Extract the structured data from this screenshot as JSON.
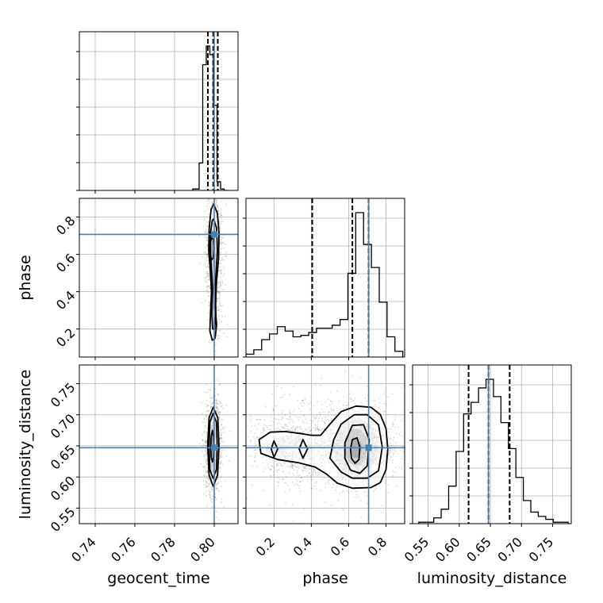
{
  "chart_data": {
    "type": "corner",
    "colors": {
      "truth": "#4682b4",
      "line": "#000000",
      "grid": "#b0b0b0"
    },
    "parameters": [
      {
        "name": "geocent_time",
        "range": [
          0.732,
          0.812
        ],
        "ticks": [
          0.74,
          0.76,
          0.78,
          0.8
        ],
        "tick_labels": [
          "0.74",
          "0.76",
          "0.78",
          "0.80"
        ],
        "truth": 0.8
      },
      {
        "name": "phase",
        "range": [
          0.05,
          0.9
        ],
        "ticks": [
          0.2,
          0.4,
          0.6,
          0.8
        ],
        "tick_labels": [
          "0.2",
          "0.4",
          "0.6",
          "0.8"
        ],
        "truth": 0.707
      },
      {
        "name": "luminosity_distance",
        "range": [
          0.525,
          0.78
        ],
        "ticks": [
          0.55,
          0.6,
          0.65,
          0.7,
          0.75
        ],
        "tick_labels": [
          "0.55",
          "0.60",
          "0.65",
          "0.70",
          "0.75"
        ],
        "truth": 0.647
      }
    ],
    "histograms": [
      {
        "param": "geocent_time",
        "bin_edges": [
          0.7892,
          0.7924,
          0.7942,
          0.796,
          0.7978,
          0.7996,
          0.8014,
          0.8032,
          0.805,
          0.8072
        ],
        "counts": [
          0.01,
          0.19,
          0.87,
          1.0,
          0.94,
          0.59,
          0.06,
          0.01,
          0
        ],
        "quantiles": [
          0.7968,
          0.7995,
          0.8018
        ]
      },
      {
        "param": "phase",
        "bin_edges": [
          0.05,
          0.092,
          0.134,
          0.176,
          0.218,
          0.26,
          0.302,
          0.344,
          0.386,
          0.428,
          0.47,
          0.512,
          0.554,
          0.596,
          0.638,
          0.68,
          0.722,
          0.764,
          0.806,
          0.848,
          0.89
        ],
        "counts": [
          0.02,
          0.05,
          0.12,
          0.16,
          0.21,
          0.18,
          0.14,
          0.15,
          0.17,
          0.2,
          0.2,
          0.22,
          0.26,
          0.58,
          1.0,
          0.78,
          0.62,
          0.38,
          0.14,
          0.04
        ],
        "quantiles": [
          0.405,
          0.62,
          0.707
        ]
      },
      {
        "param": "luminosity_distance",
        "bin_edges": [
          0.535,
          0.547,
          0.559,
          0.571,
          0.583,
          0.595,
          0.607,
          0.619,
          0.631,
          0.643,
          0.655,
          0.667,
          0.679,
          0.691,
          0.703,
          0.715,
          0.727,
          0.739,
          0.751,
          0.763,
          0.775
        ],
        "counts": [
          0.01,
          0.01,
          0.04,
          0.1,
          0.26,
          0.5,
          0.76,
          0.84,
          0.94,
          1.0,
          0.88,
          0.7,
          0.52,
          0.32,
          0.16,
          0.08,
          0.05,
          0.03,
          0.01,
          0.01
        ],
        "quantiles": [
          0.615,
          0.647,
          0.681
        ]
      }
    ],
    "density_2d": [
      {
        "x": "geocent_time",
        "y": "phase",
        "cloud": [
          [
            0.8,
            0.62,
            0.0022,
            0.22,
            900
          ]
        ],
        "contours": [
          [
            [
              0.7997,
              0.87
            ],
            [
              0.8016,
              0.82
            ],
            [
              0.8024,
              0.72
            ],
            [
              0.8022,
              0.58
            ],
            [
              0.8012,
              0.46
            ],
            [
              0.8006,
              0.32
            ],
            [
              0.8012,
              0.22
            ],
            [
              0.8004,
              0.15
            ],
            [
              0.799,
              0.14
            ],
            [
              0.7978,
              0.19
            ],
            [
              0.7981,
              0.28
            ],
            [
              0.7986,
              0.4
            ],
            [
              0.798,
              0.52
            ],
            [
              0.7972,
              0.62
            ],
            [
              0.7975,
              0.74
            ],
            [
              0.7984,
              0.84
            ]
          ],
          [
            [
              0.7997,
              0.79
            ],
            [
              0.8012,
              0.74
            ],
            [
              0.8016,
              0.62
            ],
            [
              0.8011,
              0.54
            ],
            [
              0.8006,
              0.44
            ],
            [
              0.8008,
              0.28
            ],
            [
              0.8002,
              0.2
            ],
            [
              0.7992,
              0.2
            ],
            [
              0.7988,
              0.28
            ],
            [
              0.7992,
              0.42
            ],
            [
              0.7986,
              0.53
            ],
            [
              0.7978,
              0.63
            ],
            [
              0.7982,
              0.72
            ],
            [
              0.799,
              0.78
            ]
          ],
          [
            [
              0.7986,
              0.69
            ],
            [
              0.7996,
              0.68
            ],
            [
              0.7999,
              0.63
            ],
            [
              0.7995,
              0.58
            ],
            [
              0.7986,
              0.57
            ],
            [
              0.7981,
              0.6
            ],
            [
              0.7981,
              0.66
            ]
          ]
        ],
        "shade": [
          [
            0.7988,
            0.63,
            0.0008,
            0.03,
            0.85
          ],
          [
            0.7994,
            0.62,
            0.0016,
            0.08,
            0.45
          ],
          [
            0.7994,
            0.5,
            0.0012,
            0.2,
            0.2
          ]
        ]
      },
      {
        "x": "geocent_time",
        "y": "luminosity_distance",
        "cloud": [
          [
            0.7995,
            0.648,
            0.0022,
            0.04,
            1000
          ]
        ],
        "contours": [
          [
            [
              0.7995,
              0.712
            ],
            [
              0.8018,
              0.695
            ],
            [
              0.8024,
              0.65
            ],
            [
              0.8017,
              0.603
            ],
            [
              0.7995,
              0.585
            ],
            [
              0.7974,
              0.603
            ],
            [
              0.7967,
              0.65
            ],
            [
              0.7974,
              0.695
            ]
          ],
          [
            [
              0.7994,
              0.702
            ],
            [
              0.8011,
              0.688
            ],
            [
              0.8015,
              0.65
            ],
            [
              0.8011,
              0.612
            ],
            [
              0.7994,
              0.598
            ],
            [
              0.7978,
              0.612
            ],
            [
              0.7974,
              0.65
            ],
            [
              0.7978,
              0.688
            ]
          ],
          [
            [
              0.7991,
              0.675
            ],
            [
              0.7997,
              0.665
            ],
            [
              0.7999,
              0.648
            ],
            [
              0.7997,
              0.632
            ],
            [
              0.7991,
              0.624
            ],
            [
              0.7985,
              0.632
            ],
            [
              0.7983,
              0.648
            ],
            [
              0.7985,
              0.665
            ]
          ]
        ],
        "shade": [
          [
            0.7991,
            0.648,
            0.0006,
            0.018,
            0.85
          ],
          [
            0.7993,
            0.648,
            0.0013,
            0.04,
            0.35
          ]
        ]
      },
      {
        "x": "phase",
        "y": "luminosity_distance",
        "cloud": [
          [
            0.64,
            0.648,
            0.11,
            0.035,
            1300
          ],
          [
            0.3,
            0.648,
            0.12,
            0.035,
            700
          ]
        ],
        "contours": [
          [
            [
              0.12,
              0.66
            ],
            [
              0.18,
              0.672
            ],
            [
              0.26,
              0.673
            ],
            [
              0.34,
              0.67
            ],
            [
              0.4,
              0.667
            ],
            [
              0.45,
              0.667
            ],
            [
              0.5,
              0.685
            ],
            [
              0.56,
              0.705
            ],
            [
              0.64,
              0.714
            ],
            [
              0.72,
              0.712
            ],
            [
              0.77,
              0.7
            ],
            [
              0.8,
              0.678
            ],
            [
              0.81,
              0.645
            ],
            [
              0.8,
              0.612
            ],
            [
              0.77,
              0.591
            ],
            [
              0.72,
              0.583
            ],
            [
              0.62,
              0.582
            ],
            [
              0.54,
              0.59
            ],
            [
              0.48,
              0.605
            ],
            [
              0.42,
              0.616
            ],
            [
              0.33,
              0.623
            ],
            [
              0.22,
              0.628
            ],
            [
              0.13,
              0.638
            ]
          ],
          [
            [
              0.52,
              0.66
            ],
            [
              0.56,
              0.685
            ],
            [
              0.63,
              0.7
            ],
            [
              0.7,
              0.7
            ],
            [
              0.76,
              0.684
            ],
            [
              0.78,
              0.648
            ],
            [
              0.76,
              0.61
            ],
            [
              0.7,
              0.598
            ],
            [
              0.62,
              0.598
            ],
            [
              0.56,
              0.608
            ],
            [
              0.5,
              0.63
            ]
          ],
          [
            [
              0.58,
              0.655
            ],
            [
              0.62,
              0.683
            ],
            [
              0.68,
              0.684
            ],
            [
              0.71,
              0.66
            ],
            [
              0.7,
              0.618
            ],
            [
              0.66,
              0.606
            ],
            [
              0.61,
              0.611
            ],
            [
              0.58,
              0.63
            ]
          ],
          [
            [
              0.61,
              0.645
            ],
            [
              0.62,
              0.66
            ],
            [
              0.645,
              0.663
            ],
            [
              0.66,
              0.648
            ],
            [
              0.655,
              0.628
            ],
            [
              0.635,
              0.622
            ],
            [
              0.615,
              0.63
            ]
          ],
          [
            [
              0.185,
              0.645
            ],
            [
              0.2,
              0.658
            ],
            [
              0.22,
              0.645
            ],
            [
              0.2,
              0.632
            ]
          ],
          [
            [
              0.335,
              0.645
            ],
            [
              0.355,
              0.66
            ],
            [
              0.38,
              0.645
            ],
            [
              0.355,
              0.63
            ]
          ]
        ],
        "shade": [
          [
            0.64,
            0.645,
            0.03,
            0.015,
            0.9
          ],
          [
            0.64,
            0.648,
            0.06,
            0.03,
            0.5
          ],
          [
            0.64,
            0.648,
            0.12,
            0.045,
            0.18
          ],
          [
            0.3,
            0.646,
            0.12,
            0.02,
            0.08
          ]
        ]
      }
    ]
  }
}
